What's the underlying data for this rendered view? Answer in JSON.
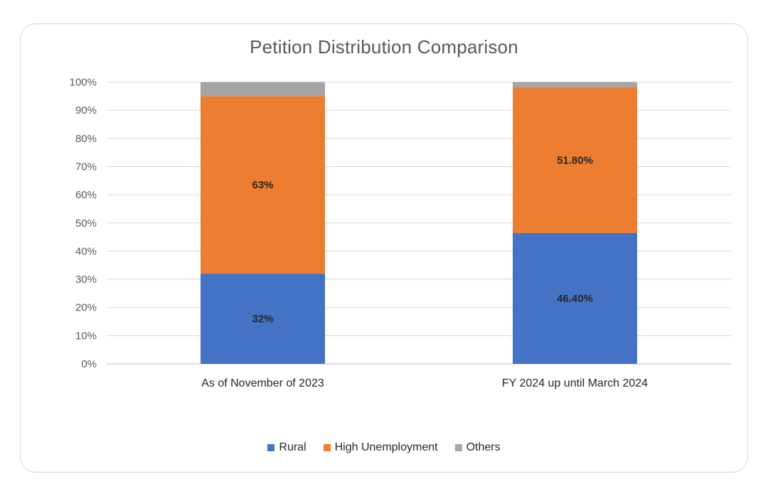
{
  "chart_data": {
    "type": "bar",
    "stacked": true,
    "title": "Petition Distribution Comparison",
    "xlabel": "",
    "ylabel": "",
    "ylim": [
      0,
      100
    ],
    "y_ticks": [
      "0%",
      "10%",
      "20%",
      "30%",
      "40%",
      "50%",
      "60%",
      "70%",
      "80%",
      "90%",
      "100%"
    ],
    "grid": true,
    "legend_position": "bottom",
    "categories": [
      "As of November of 2023",
      "FY 2024 up until March 2024"
    ],
    "series": [
      {
        "name": "Rural",
        "color": "#4472c4",
        "values": [
          32,
          46.4
        ],
        "labels": [
          "32%",
          "46.40%"
        ]
      },
      {
        "name": "High Unemployment",
        "color": "#ed7d31",
        "values": [
          63,
          51.8
        ],
        "labels": [
          "63%",
          "51.80%"
        ]
      },
      {
        "name": "Others",
        "color": "#a5a5a5",
        "values": [
          5,
          1.8
        ],
        "labels": [
          "",
          ""
        ]
      }
    ]
  }
}
